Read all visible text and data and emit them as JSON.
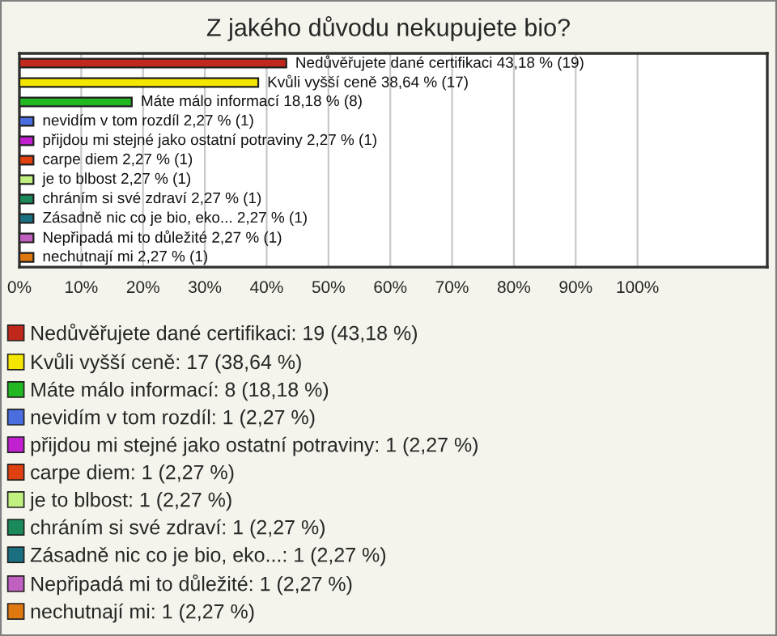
{
  "chart_data": {
    "type": "bar",
    "orientation": "horizontal",
    "title": "Z jakého důvodu nekupujete bio?",
    "categories": [
      null,
      null,
      null,
      null,
      null,
      null,
      null,
      null,
      null,
      null,
      null
    ],
    "values": [
      43.18,
      38.64,
      18.18,
      2.27,
      2.27,
      2.27,
      2.27,
      2.27,
      2.27,
      2.27,
      2.27
    ],
    "value_labels": [
      "Nedůvěřujete dané certifikaci 43,18 % (19)",
      "Kvůli vyšší ceně 38,64 % (17)",
      "Máte málo informací 18,18 % (8)",
      "nevidím v tom rozdíl 2,27 % (1)",
      "přijdou mi stejné jako ostatní potraviny 2,27 % (1)",
      "carpe diem 2,27 % (1)",
      "je to blbost 2,27 % (1)",
      "chráním si své zdraví 2,27 % (1)",
      "Zásadně nic co je bio, eko... 2,27 % (1)",
      "Nepřipadá mi to důležité 2,27 % (1)",
      "nechutnají mi 2,27 % (1)"
    ],
    "colors": [
      "#c0281c",
      "#f5e600",
      "#22b822",
      "#4a6ee0",
      "#c020d0",
      "#e04010",
      "#c0f080",
      "#1a8a5a",
      "#1a7080",
      "#c060c0",
      "#e07810"
    ],
    "xlim": [
      0,
      121
    ],
    "xticks": [
      {
        "value": 0,
        "label": "0%"
      },
      {
        "value": 10,
        "label": "10%"
      },
      {
        "value": 20,
        "label": "20%"
      },
      {
        "value": 30,
        "label": "30%"
      },
      {
        "value": 40,
        "label": "40%"
      },
      {
        "value": 50,
        "label": "50%"
      },
      {
        "value": 60,
        "label": "60%"
      },
      {
        "value": 70,
        "label": "70%"
      },
      {
        "value": 80,
        "label": "80%"
      },
      {
        "value": 90,
        "label": "90%"
      },
      {
        "value": 100,
        "label": "100%"
      }
    ],
    "grid": "x",
    "tick_labels": "x",
    "annotations": [
      "Nedůvěřujete dané certifikaci: 19 (43,18 %)",
      "Kvůli vyšší ceně: 17 (38,64 %)",
      "Máte málo informací: 8 (18,18 %)",
      "nevidím v tom rozdíl: 1 (2,27 %)",
      "přijdou mi stejné jako ostatní potraviny: 1 (2,27 %)",
      "carpe diem: 1 (2,27 %)",
      "je to blbost: 1 (2,27 %)",
      "chráním si své zdraví: 1 (2,27 %)",
      "Zásadně nic co je bio, eko...: 1 (2,27 %)",
      "Nepřipadá mi to důležité: 1 (2,27 %)",
      "nechutnají mi: 1 (2,27 %)"
    ]
  }
}
